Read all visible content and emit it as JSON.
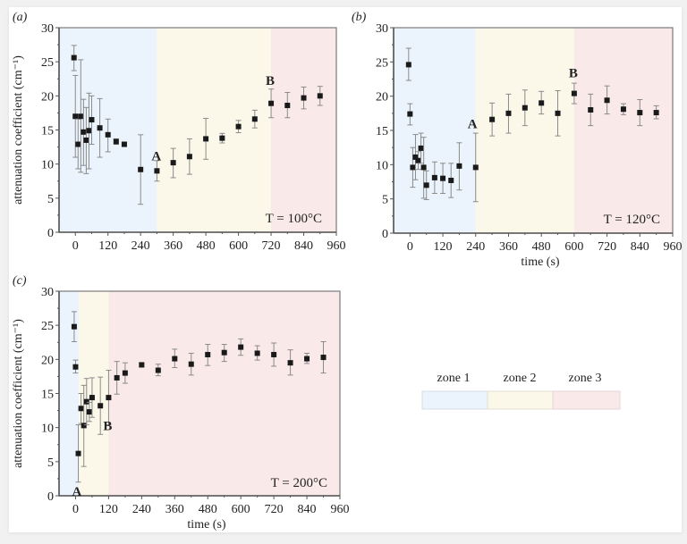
{
  "figure": {
    "legend": {
      "placement": "right-middle",
      "items": [
        {
          "label": "zone 1",
          "color": "#ebf4fc"
        },
        {
          "label": "zone 2",
          "color": "#fbf8ea"
        },
        {
          "label": "zone 3",
          "color": "#f9e9e9"
        }
      ]
    }
  },
  "chart_data": [
    {
      "panel_label": "(a)",
      "type": "scatter",
      "title": "",
      "annotation": "T = 100°C",
      "xlabel": "",
      "ylabel": "attenuation coefficient (cm⁻¹)",
      "xlim": [
        -60,
        960
      ],
      "ylim": [
        0,
        30
      ],
      "xticks": [
        0,
        120,
        240,
        360,
        480,
        600,
        720,
        840,
        960
      ],
      "yticks": [
        0,
        5,
        10,
        15,
        20,
        25,
        30
      ],
      "grid": false,
      "zones": [
        {
          "name": "zone 1",
          "from": -60,
          "to": 300
        },
        {
          "name": "zone 2",
          "from": 300,
          "to": 720
        },
        {
          "name": "zone 3",
          "from": 720,
          "to": 960
        }
      ],
      "markers": [
        {
          "label": "A",
          "x": 300,
          "y": 9
        },
        {
          "label": "B",
          "x": 720,
          "y": 19
        }
      ],
      "series": [
        {
          "name": "measurement",
          "points": [
            {
              "x": -5,
              "y": 25.6,
              "err_low": 23.7,
              "err_high": 27.4
            },
            {
              "x": 0,
              "y": 17.0,
              "err_low": 11.0,
              "err_high": 23.0
            },
            {
              "x": 10,
              "y": 12.9,
              "err_low": 9.3,
              "err_high": 16.6
            },
            {
              "x": 20,
              "y": 17.0,
              "err_low": 8.8,
              "err_high": 25.3
            },
            {
              "x": 30,
              "y": 14.7,
              "err_low": 9.8,
              "err_high": 19.5
            },
            {
              "x": 40,
              "y": 13.5,
              "err_low": 8.6,
              "err_high": 18.3
            },
            {
              "x": 50,
              "y": 14.9,
              "err_low": 9.3,
              "err_high": 20.4
            },
            {
              "x": 60,
              "y": 16.5,
              "err_low": 12.9,
              "err_high": 20.0
            },
            {
              "x": 90,
              "y": 15.3,
              "err_low": 11.0,
              "err_high": 19.6
            },
            {
              "x": 120,
              "y": 14.3,
              "err_low": 11.8,
              "err_high": 16.6
            },
            {
              "x": 150,
              "y": 13.3,
              "err_low": 12.9,
              "err_high": 13.7
            },
            {
              "x": 180,
              "y": 12.9,
              "err_low": 12.7,
              "err_high": 13.1
            },
            {
              "x": 240,
              "y": 9.2,
              "err_low": 4.1,
              "err_high": 14.3
            },
            {
              "x": 300,
              "y": 9.0,
              "err_low": 7.5,
              "err_high": 10.5
            },
            {
              "x": 360,
              "y": 10.2,
              "err_low": 8.0,
              "err_high": 12.3
            },
            {
              "x": 420,
              "y": 11.1,
              "err_low": 8.5,
              "err_high": 13.7
            },
            {
              "x": 480,
              "y": 13.7,
              "err_low": 10.7,
              "err_high": 16.7
            },
            {
              "x": 540,
              "y": 13.8,
              "err_low": 13.1,
              "err_high": 14.5
            },
            {
              "x": 600,
              "y": 15.5,
              "err_low": 14.6,
              "err_high": 16.4
            },
            {
              "x": 660,
              "y": 16.6,
              "err_low": 15.3,
              "err_high": 17.9
            },
            {
              "x": 720,
              "y": 18.9,
              "err_low": 16.8,
              "err_high": 21.0
            },
            {
              "x": 780,
              "y": 18.6,
              "err_low": 16.8,
              "err_high": 20.5
            },
            {
              "x": 840,
              "y": 19.7,
              "err_low": 18.1,
              "err_high": 21.3
            },
            {
              "x": 900,
              "y": 20.0,
              "err_low": 18.6,
              "err_high": 21.4
            }
          ]
        }
      ]
    },
    {
      "panel_label": "(b)",
      "type": "scatter",
      "title": "",
      "annotation": "T = 120°C",
      "xlabel": "time (s)",
      "ylabel": "",
      "xlim": [
        -60,
        960
      ],
      "ylim": [
        0,
        30
      ],
      "xticks": [
        0,
        120,
        240,
        360,
        480,
        600,
        720,
        840,
        960
      ],
      "yticks": [
        0,
        5,
        10,
        15,
        20,
        25,
        30
      ],
      "grid": false,
      "zones": [
        {
          "name": "zone 1",
          "from": -60,
          "to": 240
        },
        {
          "name": "zone 2",
          "from": 240,
          "to": 600
        },
        {
          "name": "zone 3",
          "from": 600,
          "to": 960
        }
      ],
      "markers": [
        {
          "label": "A",
          "x": 240,
          "y": 16
        },
        {
          "label": "B",
          "x": 600,
          "y": 23
        }
      ],
      "series": [
        {
          "name": "measurement",
          "points": [
            {
              "x": -5,
              "y": 24.6,
              "err_low": 22.3,
              "err_high": 27.0
            },
            {
              "x": 0,
              "y": 17.4,
              "err_low": 15.8,
              "err_high": 18.9
            },
            {
              "x": 10,
              "y": 9.6,
              "err_low": 6.7,
              "err_high": 12.5
            },
            {
              "x": 20,
              "y": 11.1,
              "err_low": 7.8,
              "err_high": 14.4
            },
            {
              "x": 30,
              "y": 10.6,
              "err_low": 9.3,
              "err_high": 11.9
            },
            {
              "x": 40,
              "y": 12.4,
              "err_low": 10.2,
              "err_high": 14.6
            },
            {
              "x": 50,
              "y": 9.6,
              "err_low": 5.1,
              "err_high": 14.0
            },
            {
              "x": 60,
              "y": 7.0,
              "err_low": 4.9,
              "err_high": 9.1
            },
            {
              "x": 90,
              "y": 8.1,
              "err_low": 5.8,
              "err_high": 10.4
            },
            {
              "x": 120,
              "y": 8.0,
              "err_low": 5.8,
              "err_high": 10.2
            },
            {
              "x": 150,
              "y": 7.7,
              "err_low": 5.2,
              "err_high": 10.2
            },
            {
              "x": 180,
              "y": 9.8,
              "err_low": 6.3,
              "err_high": 13.2
            },
            {
              "x": 240,
              "y": 9.6,
              "err_low": 4.6,
              "err_high": 14.6
            },
            {
              "x": 300,
              "y": 16.6,
              "err_low": 14.2,
              "err_high": 19.0
            },
            {
              "x": 360,
              "y": 17.5,
              "err_low": 14.6,
              "err_high": 20.3
            },
            {
              "x": 420,
              "y": 18.3,
              "err_low": 15.7,
              "err_high": 20.9
            },
            {
              "x": 480,
              "y": 19.0,
              "err_low": 17.4,
              "err_high": 20.7
            },
            {
              "x": 540,
              "y": 17.5,
              "err_low": 14.2,
              "err_high": 20.8
            },
            {
              "x": 600,
              "y": 20.4,
              "err_low": 18.9,
              "err_high": 21.9
            },
            {
              "x": 660,
              "y": 18.0,
              "err_low": 15.7,
              "err_high": 20.3
            },
            {
              "x": 720,
              "y": 19.4,
              "err_low": 17.4,
              "err_high": 21.5
            },
            {
              "x": 780,
              "y": 18.1,
              "err_low": 17.3,
              "err_high": 18.9
            },
            {
              "x": 840,
              "y": 17.6,
              "err_low": 15.7,
              "err_high": 19.5
            },
            {
              "x": 900,
              "y": 17.6,
              "err_low": 16.7,
              "err_high": 18.6
            }
          ]
        }
      ]
    },
    {
      "panel_label": "(c)",
      "type": "scatter",
      "title": "",
      "annotation": "T = 200°C",
      "xlabel": "time (s)",
      "ylabel": "attenuation coefficient (cm⁻¹)",
      "xlim": [
        -60,
        960
      ],
      "ylim": [
        0,
        30
      ],
      "xticks": [
        0,
        120,
        240,
        360,
        480,
        600,
        720,
        840,
        960
      ],
      "yticks": [
        0,
        5,
        10,
        15,
        20,
        25,
        30
      ],
      "grid": false,
      "zones": [
        {
          "name": "zone 1",
          "from": -60,
          "to": 12
        },
        {
          "name": "zone 2",
          "from": 12,
          "to": 120
        },
        {
          "name": "zone 3",
          "from": 120,
          "to": 960
        }
      ],
      "markers": [
        {
          "label": "A",
          "x": 10,
          "y": 0
        },
        {
          "label": "B",
          "x": 120,
          "y": 9
        }
      ],
      "series": [
        {
          "name": "measurement",
          "points": [
            {
              "x": -5,
              "y": 24.8,
              "err_low": 22.6,
              "err_high": 27.0
            },
            {
              "x": 0,
              "y": 18.9,
              "err_low": 18.0,
              "err_high": 19.9
            },
            {
              "x": 10,
              "y": 6.2,
              "err_low": 2.0,
              "err_high": 10.4
            },
            {
              "x": 20,
              "y": 12.8,
              "err_low": 10.6,
              "err_high": 15.0
            },
            {
              "x": 30,
              "y": 10.3,
              "err_low": 4.3,
              "err_high": 16.2
            },
            {
              "x": 40,
              "y": 13.8,
              "err_low": 10.4,
              "err_high": 17.2
            },
            {
              "x": 50,
              "y": 12.3,
              "err_low": 10.9,
              "err_high": 13.7
            },
            {
              "x": 60,
              "y": 14.4,
              "err_low": 11.5,
              "err_high": 17.3
            },
            {
              "x": 90,
              "y": 13.2,
              "err_low": 9.0,
              "err_high": 17.4
            },
            {
              "x": 120,
              "y": 14.4,
              "err_low": 10.4,
              "err_high": 18.4
            },
            {
              "x": 150,
              "y": 17.3,
              "err_low": 14.9,
              "err_high": 19.7
            },
            {
              "x": 180,
              "y": 18.0,
              "err_low": 16.5,
              "err_high": 19.5
            },
            {
              "x": 240,
              "y": 19.2,
              "err_low": 18.9,
              "err_high": 19.5
            },
            {
              "x": 300,
              "y": 18.4,
              "err_low": 17.6,
              "err_high": 19.3
            },
            {
              "x": 360,
              "y": 20.1,
              "err_low": 18.8,
              "err_high": 21.5
            },
            {
              "x": 420,
              "y": 19.3,
              "err_low": 17.7,
              "err_high": 20.9
            },
            {
              "x": 480,
              "y": 20.7,
              "err_low": 19.1,
              "err_high": 22.2
            },
            {
              "x": 540,
              "y": 21.0,
              "err_low": 19.7,
              "err_high": 22.2
            },
            {
              "x": 600,
              "y": 21.8,
              "err_low": 20.6,
              "err_high": 23.0
            },
            {
              "x": 660,
              "y": 20.9,
              "err_low": 19.9,
              "err_high": 22.0
            },
            {
              "x": 720,
              "y": 20.7,
              "err_low": 19.0,
              "err_high": 22.4
            },
            {
              "x": 780,
              "y": 19.5,
              "err_low": 17.7,
              "err_high": 21.4
            },
            {
              "x": 840,
              "y": 20.1,
              "err_low": 19.4,
              "err_high": 20.9
            },
            {
              "x": 900,
              "y": 20.3,
              "err_low": 18.0,
              "err_high": 22.6
            }
          ]
        }
      ]
    }
  ]
}
